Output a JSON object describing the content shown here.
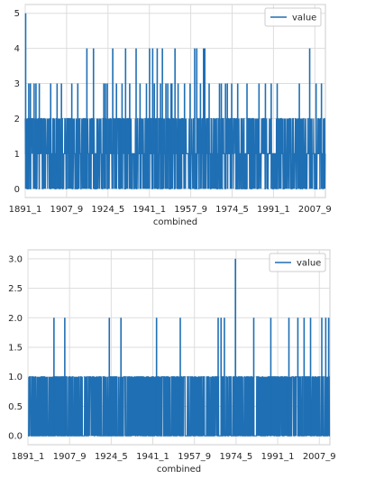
{
  "chart_data": [
    {
      "type": "line",
      "xlabel": "combined",
      "ylabel": "",
      "legend": {
        "entries": [
          "value"
        ],
        "placement": "top-right"
      },
      "grid": true,
      "series": [
        {
          "name": "value",
          "color": "#1f6fb4",
          "baseline": 0,
          "x_range": [
            "1891_1",
            "2011_12"
          ],
          "spikes": [
            {
              "x": "1891_3",
              "y": 5
            },
            {
              "x": "1892_6",
              "y": 3
            },
            {
              "x": "1893_2",
              "y": 3
            },
            {
              "x": "1894_8",
              "y": 3
            },
            {
              "x": "1895_5",
              "y": 3
            },
            {
              "x": "1896_9",
              "y": 3
            },
            {
              "x": "1898_1",
              "y": 2
            },
            {
              "x": "1901_4",
              "y": 3
            },
            {
              "x": "1903_11",
              "y": 3
            },
            {
              "x": "1904_6",
              "y": 2
            },
            {
              "x": "1905_8",
              "y": 3
            },
            {
              "x": "1908_2",
              "y": 2
            },
            {
              "x": "1909_10",
              "y": 3
            },
            {
              "x": "1912_3",
              "y": 3
            },
            {
              "x": "1915_6",
              "y": 2
            },
            {
              "x": "1915_11",
              "y": 4
            },
            {
              "x": "1918_7",
              "y": 4
            },
            {
              "x": "1920_1",
              "y": 2
            },
            {
              "x": "1922_9",
              "y": 3
            },
            {
              "x": "1923_5",
              "y": 3
            },
            {
              "x": "1924_2",
              "y": 3
            },
            {
              "x": "1926_4",
              "y": 4
            },
            {
              "x": "1927_10",
              "y": 3
            },
            {
              "x": "1929_3",
              "y": 2
            },
            {
              "x": "1930_1",
              "y": 3
            },
            {
              "x": "1931_6",
              "y": 4
            },
            {
              "x": "1933_2",
              "y": 3
            },
            {
              "x": "1935_9",
              "y": 4
            },
            {
              "x": "1937_4",
              "y": 3
            },
            {
              "x": "1939_11",
              "y": 3
            },
            {
              "x": "1940_8",
              "y": 2
            },
            {
              "x": "1941_2",
              "y": 4
            },
            {
              "x": "1942_5",
              "y": 4
            },
            {
              "x": "1943_1",
              "y": 3
            },
            {
              "x": "1944_3",
              "y": 4
            },
            {
              "x": "1945_7",
              "y": 3
            },
            {
              "x": "1946_4",
              "y": 4
            },
            {
              "x": "1947_9",
              "y": 3
            },
            {
              "x": "1948_6",
              "y": 3
            },
            {
              "x": "1949_10",
              "y": 3
            },
            {
              "x": "1950_2",
              "y": 3
            },
            {
              "x": "1951_5",
              "y": 4
            },
            {
              "x": "1952_8",
              "y": 3
            },
            {
              "x": "1954_1",
              "y": 2
            },
            {
              "x": "1955_3",
              "y": 3
            },
            {
              "x": "1957_6",
              "y": 3
            },
            {
              "x": "1959_4",
              "y": 4
            },
            {
              "x": "1960_2",
              "y": 4
            },
            {
              "x": "1961_8",
              "y": 3
            },
            {
              "x": "1962_11",
              "y": 4
            },
            {
              "x": "1963_5",
              "y": 4
            },
            {
              "x": "1965_2",
              "y": 3
            },
            {
              "x": "1967_7",
              "y": 2
            },
            {
              "x": "1969_4",
              "y": 3
            },
            {
              "x": "1970_1",
              "y": 3
            },
            {
              "x": "1971_9",
              "y": 3
            },
            {
              "x": "1972_6",
              "y": 3
            },
            {
              "x": "1974_3",
              "y": 3
            },
            {
              "x": "1976_8",
              "y": 3
            },
            {
              "x": "1978_2",
              "y": 2
            },
            {
              "x": "1980_5",
              "y": 3
            },
            {
              "x": "1982_9",
              "y": 2
            },
            {
              "x": "1985_3",
              "y": 3
            },
            {
              "x": "1987_10",
              "y": 3
            },
            {
              "x": "1990_2",
              "y": 3
            },
            {
              "x": "1992_7",
              "y": 3
            },
            {
              "x": "1995_4",
              "y": 2
            },
            {
              "x": "1998_1",
              "y": 2
            },
            {
              "x": "2001_6",
              "y": 3
            },
            {
              "x": "2005_8",
              "y": 4
            },
            {
              "x": "2008_3",
              "y": 3
            },
            {
              "x": "2010_5",
              "y": 3
            }
          ],
          "dense_max": 2,
          "density": 0.75
        }
      ],
      "x_ticks": [
        "1891_1",
        "1907_9",
        "1924_5",
        "1941_1",
        "1957_9",
        "1974_5",
        "1991_1",
        "2007_9"
      ],
      "y_ticks": [
        0,
        1,
        2,
        3,
        4,
        5
      ],
      "ylim": [
        -0.25,
        5.25
      ]
    },
    {
      "type": "line",
      "xlabel": "combined",
      "ylabel": "",
      "legend": {
        "entries": [
          "value"
        ],
        "placement": "top-right"
      },
      "grid": true,
      "series": [
        {
          "name": "value",
          "color": "#1f6fb4",
          "baseline": 0,
          "x_range": [
            "1891_1",
            "2011_12"
          ],
          "spikes": [
            {
              "x": "1901_6",
              "y": 2
            },
            {
              "x": "1905_10",
              "y": 2
            },
            {
              "x": "1923_8",
              "y": 2
            },
            {
              "x": "1928_4",
              "y": 2
            },
            {
              "x": "1942_7",
              "y": 2
            },
            {
              "x": "1952_1",
              "y": 2
            },
            {
              "x": "1967_3",
              "y": 2
            },
            {
              "x": "1968_5",
              "y": 2
            },
            {
              "x": "1969_9",
              "y": 2
            },
            {
              "x": "1974_2",
              "y": 3
            },
            {
              "x": "1981_6",
              "y": 2
            },
            {
              "x": "1988_4",
              "y": 2
            },
            {
              "x": "1995_7",
              "y": 2
            },
            {
              "x": "1999_2",
              "y": 2
            },
            {
              "x": "2001_8",
              "y": 2
            },
            {
              "x": "2004_3",
              "y": 2
            },
            {
              "x": "2008_9",
              "y": 2
            },
            {
              "x": "2010_4",
              "y": 2
            },
            {
              "x": "2011_6",
              "y": 2
            }
          ],
          "dense_max": 1,
          "density": 0.45
        }
      ],
      "x_ticks": [
        "1891_1",
        "1907_9",
        "1924_5",
        "1941_1",
        "1957_9",
        "1974_5",
        "1991_1",
        "2007_9"
      ],
      "y_ticks": [
        "0.0",
        "0.5",
        "1.0",
        "1.5",
        "2.0",
        "2.5",
        "3.0"
      ],
      "ylim": [
        -0.15,
        3.15
      ]
    }
  ]
}
